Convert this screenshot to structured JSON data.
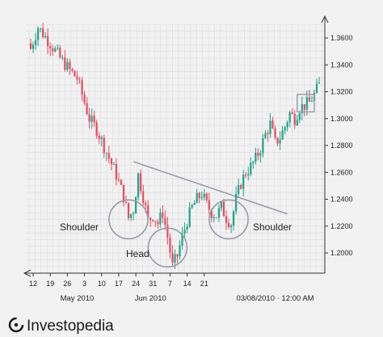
{
  "chart_data": {
    "type": "candlestick",
    "title": "",
    "xlabel": "",
    "ylabel": "",
    "ylim": [
      1.18,
      1.38
    ],
    "grid": true,
    "colors": {
      "up": "#1fa38a",
      "down": "#e84a5f",
      "line": "#9a9aa8",
      "circle": "#9a9aa8",
      "grid": "#dcdcdc"
    },
    "y_ticks": [
      "1.3600",
      "1.3400",
      "1.3200",
      "1.3000",
      "1.2800",
      "1.2600",
      "1.2400",
      "1.2200",
      "1.2000"
    ],
    "y_tick_values": [
      1.36,
      1.34,
      1.32,
      1.3,
      1.28,
      1.26,
      1.24,
      1.22,
      1.2
    ],
    "x_ticks": [
      "12",
      "19",
      "26",
      "3",
      "10",
      "17",
      "24",
      "31",
      "7",
      "14",
      "21"
    ],
    "x_tick_index": [
      1,
      8,
      15,
      22,
      29,
      36,
      43,
      50,
      57,
      64,
      71
    ],
    "month_labels": [
      {
        "text": "May 2010",
        "index": 19
      },
      {
        "text": "Jun 2010",
        "index": 49
      },
      {
        "text": "03/08/2010 · 12:00 AM",
        "index": 100
      }
    ],
    "annotations": {
      "left_shoulder": "Shoulder",
      "head": "Head",
      "right_shoulder": "Shoulder"
    },
    "neckline": {
      "from": {
        "index": 42,
        "value": 1.268
      },
      "to": {
        "index": 105,
        "value": 1.229
      }
    },
    "circles": [
      {
        "name": "left-shoulder",
        "index": 40,
        "value": 1.225
      },
      {
        "name": "head",
        "index": 56,
        "value": 1.204
      },
      {
        "name": "right-shoulder",
        "index": 81,
        "value": 1.225
      }
    ],
    "highlight_box": {
      "index_from": 109,
      "index_to": 116,
      "value_from": 1.305,
      "value_to": 1.318
    },
    "anchors": [
      [
        0,
        1.352
      ],
      [
        3,
        1.368
      ],
      [
        8,
        1.356
      ],
      [
        12,
        1.345
      ],
      [
        16,
        1.336
      ],
      [
        19,
        1.33
      ],
      [
        24,
        1.3
      ],
      [
        27,
        1.292
      ],
      [
        31,
        1.275
      ],
      [
        35,
        1.258
      ],
      [
        38,
        1.242
      ],
      [
        40,
        1.226
      ],
      [
        42,
        1.232
      ],
      [
        44,
        1.258
      ],
      [
        46,
        1.242
      ],
      [
        48,
        1.224
      ],
      [
        50,
        1.228
      ],
      [
        52,
        1.222
      ],
      [
        54,
        1.23
      ],
      [
        56,
        1.212
      ],
      [
        58,
        1.19
      ],
      [
        60,
        1.198
      ],
      [
        62,
        1.212
      ],
      [
        64,
        1.224
      ],
      [
        66,
        1.234
      ],
      [
        68,
        1.24
      ],
      [
        70,
        1.244
      ],
      [
        72,
        1.236
      ],
      [
        74,
        1.23
      ],
      [
        76,
        1.228
      ],
      [
        78,
        1.234
      ],
      [
        80,
        1.226
      ],
      [
        82,
        1.222
      ],
      [
        84,
        1.24
      ],
      [
        86,
        1.252
      ],
      [
        88,
        1.26
      ],
      [
        90,
        1.264
      ],
      [
        92,
        1.27
      ],
      [
        94,
        1.278
      ],
      [
        96,
        1.288
      ],
      [
        98,
        1.296
      ],
      [
        100,
        1.282
      ],
      [
        102,
        1.286
      ],
      [
        104,
        1.294
      ],
      [
        106,
        1.304
      ],
      [
        108,
        1.3
      ],
      [
        110,
        1.308
      ],
      [
        112,
        1.31
      ],
      [
        114,
        1.312
      ],
      [
        116,
        1.318
      ],
      [
        118,
        1.325
      ]
    ]
  },
  "logo": {
    "text": "Investopedia"
  }
}
